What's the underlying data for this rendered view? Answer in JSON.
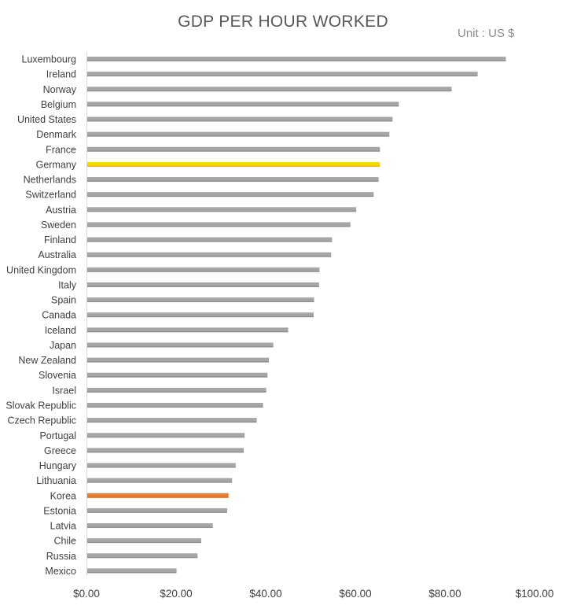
{
  "chart_data": {
    "type": "bar",
    "orientation": "horizontal",
    "title": "GDP PER HOUR WORKED",
    "unit": "Unit : US $",
    "xlim": [
      0,
      100
    ],
    "x_ticks": [
      "$0.00",
      "$20.00",
      "$40.00",
      "$60.00",
      "$80.00",
      "$100.00"
    ],
    "grid": false,
    "categories": [
      "Luxembourg",
      "Ireland",
      "Norway",
      "Belgium",
      "United States",
      "Denmark",
      "France",
      "Germany",
      "Netherlands",
      "Switzerland",
      "Austria",
      "Sweden",
      "Finland",
      "Australia",
      "United Kingdom",
      "Italy",
      "Spain",
      "Canada",
      "Iceland",
      "Japan",
      "New Zealand",
      "Slovenia",
      "Israel",
      "Slovak Republic",
      "Czech Republic",
      "Portugal",
      "Greece",
      "Hungary",
      "Lithuania",
      "Korea",
      "Estonia",
      "Latvia",
      "Chile",
      "Russia",
      "Mexico"
    ],
    "values": [
      93.6,
      87.3,
      81.5,
      69.7,
      68.3,
      67.6,
      65.5,
      65.5,
      65.2,
      64.1,
      60.2,
      58.9,
      54.8,
      54.6,
      52.0,
      51.9,
      50.8,
      50.7,
      45.0,
      41.7,
      40.7,
      40.4,
      40.1,
      39.4,
      38.0,
      35.3,
      35.1,
      33.3,
      32.5,
      31.7,
      31.4,
      28.2,
      25.6,
      24.8,
      20.1
    ],
    "colors": {
      "default": "#a6a6a6",
      "Germany": "#ffd700",
      "Korea": "#ed7d31"
    }
  }
}
